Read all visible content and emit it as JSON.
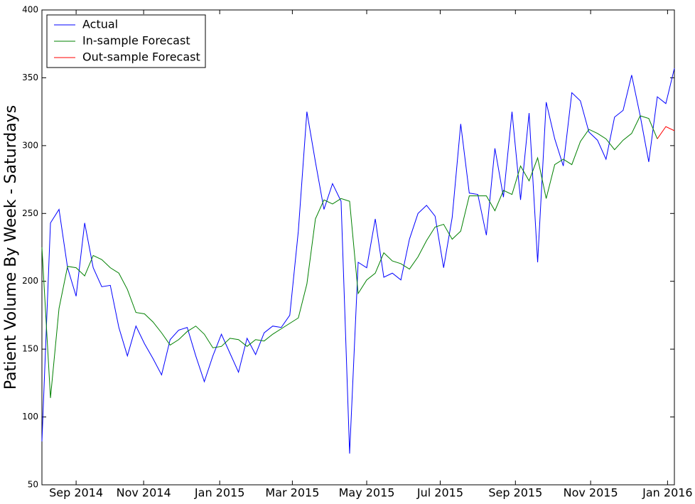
{
  "chart_data": {
    "type": "line",
    "ylabel": "Patient Volume By Week - Saturdays",
    "x": [
      0,
      1,
      2,
      3,
      4,
      5,
      6,
      7,
      8,
      9,
      10,
      11,
      12,
      13,
      14,
      15,
      16,
      17,
      18,
      19,
      20,
      21,
      22,
      23,
      24,
      25,
      26,
      27,
      28,
      29,
      30,
      31,
      32,
      33,
      34,
      35,
      36,
      37,
      38,
      39,
      40,
      41,
      42,
      43,
      44,
      45,
      46,
      47,
      48,
      49,
      50,
      51,
      52,
      53,
      54,
      55,
      56,
      57,
      58,
      59,
      60,
      61,
      62,
      63,
      64,
      65,
      66,
      67,
      68,
      69,
      70,
      71,
      72,
      73,
      74
    ],
    "xlim": [
      0,
      74
    ],
    "xticks": [
      {
        "value": 4.0,
        "label": "Sep 2014"
      },
      {
        "value": 11.9,
        "label": "Nov 2014"
      },
      {
        "value": 20.8,
        "label": "Jan 2015"
      },
      {
        "value": 29.3,
        "label": "Mar 2015"
      },
      {
        "value": 38.0,
        "label": "May 2015"
      },
      {
        "value": 46.6,
        "label": "Jul 2015"
      },
      {
        "value": 55.4,
        "label": "Sep 2015"
      },
      {
        "value": 64.2,
        "label": "Nov 2015"
      },
      {
        "value": 73.2,
        "label": "Jan 2016"
      }
    ],
    "ylim": [
      50,
      400
    ],
    "yticks": [
      50,
      100,
      150,
      200,
      250,
      300,
      350,
      400
    ],
    "legend": "upper left",
    "series": [
      {
        "name": "Actual",
        "color": "#0000ff",
        "values": [
          82,
          243,
          253,
          210,
          189,
          243,
          210,
          196,
          197,
          166,
          145,
          167,
          154,
          143,
          131,
          157,
          164,
          166,
          145,
          126,
          145,
          161,
          147,
          133,
          158,
          146,
          162,
          167,
          166,
          175,
          237,
          325,
          288,
          253,
          272,
          259,
          73,
          214,
          210,
          246,
          203,
          206,
          201,
          231,
          250,
          256,
          248,
          210,
          247,
          316,
          265,
          264,
          234,
          298,
          262,
          325,
          260,
          324,
          214,
          332,
          305,
          285,
          339,
          333,
          310,
          304,
          290,
          321,
          326,
          352,
          322,
          288,
          336,
          331,
          357
        ]
      },
      {
        "name": "In-sample Forecast",
        "color": "#008000",
        "values": [
          225,
          114,
          180,
          211,
          210,
          204,
          219,
          216,
          210,
          206,
          194,
          177,
          176,
          170,
          162,
          153,
          157,
          163,
          167,
          161,
          151,
          152,
          158,
          157,
          152,
          157,
          156,
          161,
          165,
          169,
          173,
          198,
          246,
          260,
          257,
          261,
          259,
          191,
          201,
          206,
          221,
          215,
          213,
          209,
          218,
          230,
          240,
          242,
          231,
          237,
          263,
          263,
          263,
          252,
          267,
          264,
          285,
          274,
          291,
          261,
          286,
          290,
          286,
          303,
          312,
          309,
          305,
          297,
          304,
          309,
          322,
          320,
          305,
          null,
          null
        ]
      },
      {
        "name": "Out-sample Forecast",
        "color": "#ff0000",
        "values": [
          null,
          null,
          null,
          null,
          null,
          null,
          null,
          null,
          null,
          null,
          null,
          null,
          null,
          null,
          null,
          null,
          null,
          null,
          null,
          null,
          null,
          null,
          null,
          null,
          null,
          null,
          null,
          null,
          null,
          null,
          null,
          null,
          null,
          null,
          null,
          null,
          null,
          null,
          null,
          null,
          null,
          null,
          null,
          null,
          null,
          null,
          null,
          null,
          null,
          null,
          null,
          null,
          null,
          null,
          null,
          null,
          null,
          null,
          null,
          null,
          null,
          null,
          null,
          null,
          null,
          null,
          null,
          null,
          null,
          null,
          null,
          null,
          305,
          314,
          311
        ]
      }
    ]
  }
}
